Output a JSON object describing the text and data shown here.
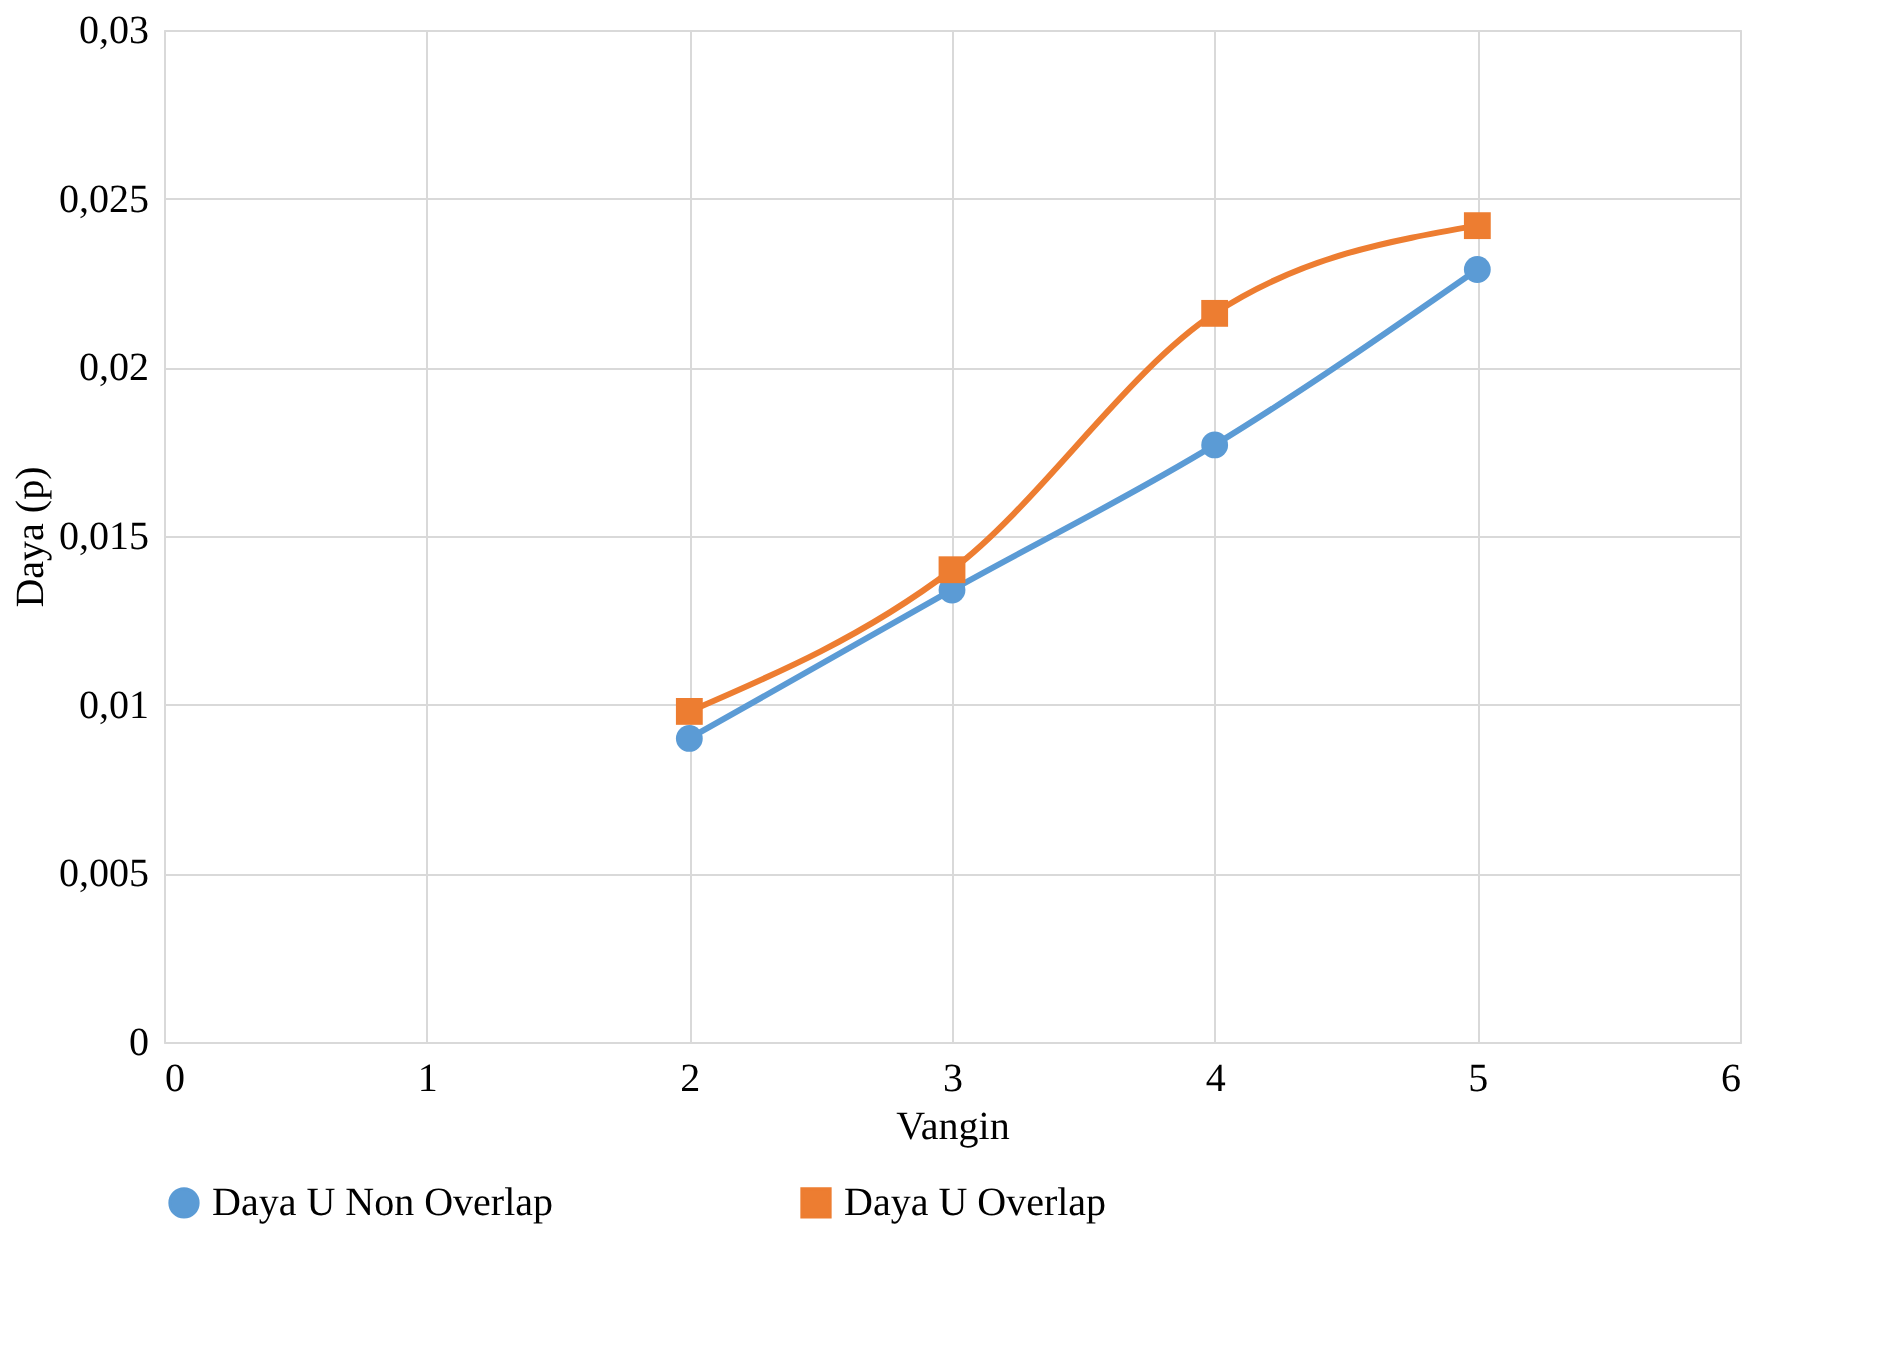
{
  "chart_data": {
    "type": "line",
    "xlabel": "Vangin",
    "ylabel": "Daya (p)",
    "x": [
      2,
      3,
      4,
      5
    ],
    "series": [
      {
        "name": "Daya U Non Overlap",
        "color": "#5b9bd5",
        "marker": "circle",
        "values": [
          0.009,
          0.0134,
          0.0177,
          0.0229
        ]
      },
      {
        "name": "Daya U Overlap",
        "color": "#ed7d31",
        "marker": "square",
        "values": [
          0.0098,
          0.014,
          0.0216,
          0.0242
        ]
      }
    ],
    "xlim": [
      0,
      6
    ],
    "xticks": [
      0,
      1,
      2,
      3,
      4,
      5,
      6
    ],
    "ylim": [
      0,
      0.03
    ],
    "yticks": [
      0,
      {
        "value": 0.005,
        "label": "0,005"
      },
      {
        "value": 0.01,
        "label": "0,01"
      },
      {
        "value": 0.015,
        "label": "0,015"
      },
      {
        "value": 0.02,
        "label": "0,02"
      },
      {
        "value": 0.025,
        "label": "0,025"
      },
      {
        "value": 0.03,
        "label": "0,03"
      }
    ],
    "grid": true,
    "legend": "bottom",
    "line_style": "solid"
  }
}
